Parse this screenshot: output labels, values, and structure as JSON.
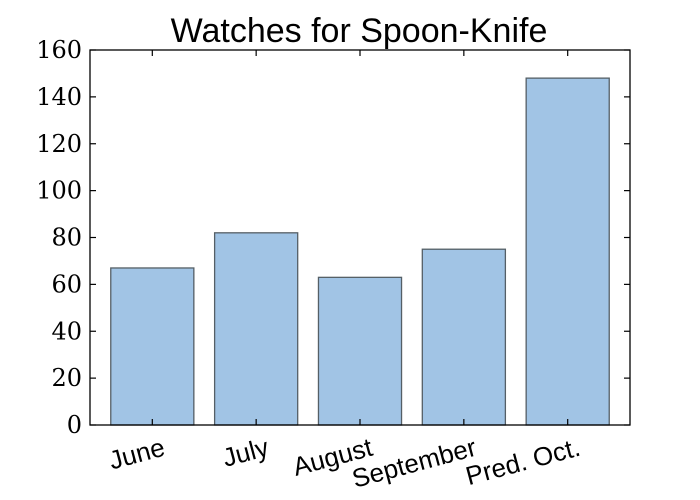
{
  "chart_data": {
    "type": "bar",
    "title": "Watches for Spoon-Knife",
    "xlabel": "",
    "ylabel": "",
    "categories": [
      "June",
      "July",
      "August",
      "September",
      "Pred. Oct."
    ],
    "values": [
      67,
      82,
      63,
      75,
      148
    ],
    "ylim": [
      0,
      160
    ],
    "yticks": [
      0,
      20,
      40,
      60,
      80,
      100,
      120,
      140,
      160
    ],
    "grid": false,
    "legend": "none",
    "bar_color": "#a1c4e5",
    "bar_edge_color": "#555f66"
  }
}
